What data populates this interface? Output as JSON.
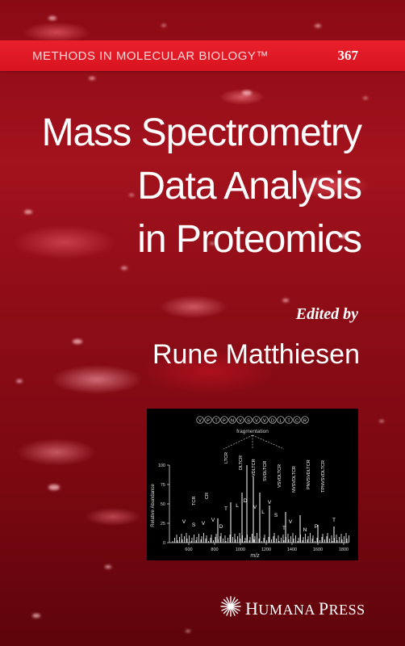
{
  "series": {
    "name": "METHODS IN MOLECULAR BIOLOGY™",
    "number": "367"
  },
  "title": {
    "line1": "Mass Spectrometry",
    "line2": "Data Analysis",
    "line3": "in Proteomics"
  },
  "edited_by": "Edited by",
  "author": "Rune Matthiesen",
  "figure": {
    "sequence_letters": [
      "V",
      "P",
      "T",
      "P",
      "N",
      "V",
      "S",
      "V",
      "V",
      "D",
      "L",
      "T",
      "C",
      "R"
    ],
    "fragmentation_label": "fragmentation",
    "ylabel": "Relative Abundance",
    "xlabel": "m/z",
    "y_ticks": [
      "0",
      "25",
      "50",
      "75",
      "100"
    ],
    "x_ticks": [
      "600",
      "800",
      "1000",
      "1200",
      "1400",
      "1600",
      "1800"
    ],
    "peak_labels": [
      "TCR",
      "CR",
      "LTCR",
      "DLTCR",
      "VDLTCR",
      "SVDLTCR",
      "VSVDLTCR",
      "NVSVDLTCR",
      "PNVSVDLTCR",
      "TPNVSVDLTCR"
    ],
    "ion_letters": [
      "V",
      "S",
      "V",
      "V",
      "D",
      "T",
      "L",
      "D",
      "V",
      "L",
      "V",
      "S",
      "T",
      "V",
      "N",
      "P",
      "T"
    ]
  },
  "publisher": {
    "first": "H",
    "rest1": "UMANA ",
    "first2": "P",
    "rest2": "RESS"
  },
  "colors": {
    "band": "#e01822",
    "background": "#8a0a14",
    "text": "#ffffff"
  }
}
